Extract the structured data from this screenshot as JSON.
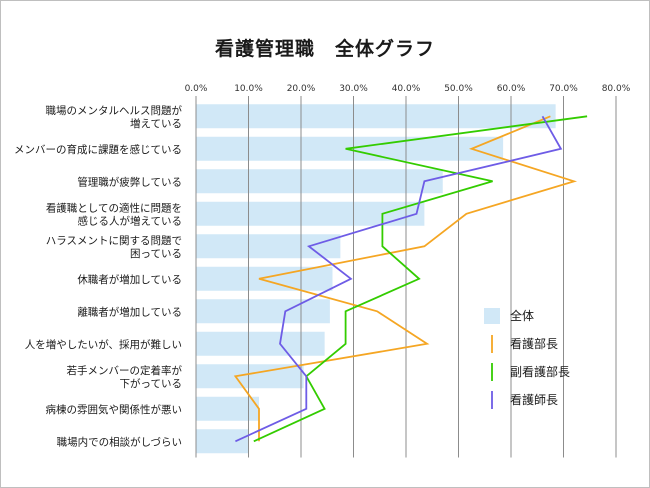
{
  "chart_data": {
    "type": "bar",
    "title": "看護管理職　全体グラフ",
    "xlim": [
      0,
      80
    ],
    "x_ticks": [
      "0.0%",
      "10.0%",
      "20.0%",
      "30.0%",
      "40.0%",
      "50.0%",
      "60.0%",
      "70.0%",
      "80.0%"
    ],
    "categories": [
      [
        "職場のメンタルヘルス問題が",
        "増えている"
      ],
      [
        "メンバーの育成に課題を感じている"
      ],
      [
        "管理職が疲弊している"
      ],
      [
        "看護職としての適性に問題を",
        "感じる人が増えている"
      ],
      [
        "ハラスメントに関する問題で",
        "困っている"
      ],
      [
        "休職者が増加している"
      ],
      [
        "離職者が増加している"
      ],
      [
        "人を増やしたいが、採用が難しい"
      ],
      [
        "若手メンバーの定着率が",
        "下がっている"
      ],
      [
        "病棟の雰囲気や関係性が悪い"
      ],
      [
        "職場内での相談がしづらい"
      ]
    ],
    "series": [
      {
        "name": "全体",
        "kind": "bar",
        "color": "#d1e8f7",
        "values": [
          68.5,
          58.5,
          47.0,
          43.5,
          27.5,
          26.0,
          25.5,
          24.5,
          20.5,
          12.0,
          10.0
        ]
      },
      {
        "name": "看護部長",
        "kind": "line",
        "color": "#f5a623",
        "values": [
          67.5,
          52.5,
          72.0,
          51.5,
          43.5,
          12.0,
          34.5,
          44.0,
          7.5,
          12.0,
          12.0
        ]
      },
      {
        "name": "副看護部長",
        "kind": "line",
        "color": "#33cc00",
        "values": [
          74.5,
          28.5,
          56.5,
          35.5,
          35.5,
          42.5,
          28.5,
          28.5,
          21.0,
          24.5,
          11.0
        ]
      },
      {
        "name": "看護師長",
        "kind": "line",
        "color": "#6e5ce6",
        "values": [
          66.0,
          69.5,
          43.5,
          42.0,
          21.5,
          29.5,
          17.0,
          16.0,
          21.0,
          21.0,
          7.5
        ]
      }
    ],
    "legend_position": "right",
    "grid": true
  }
}
